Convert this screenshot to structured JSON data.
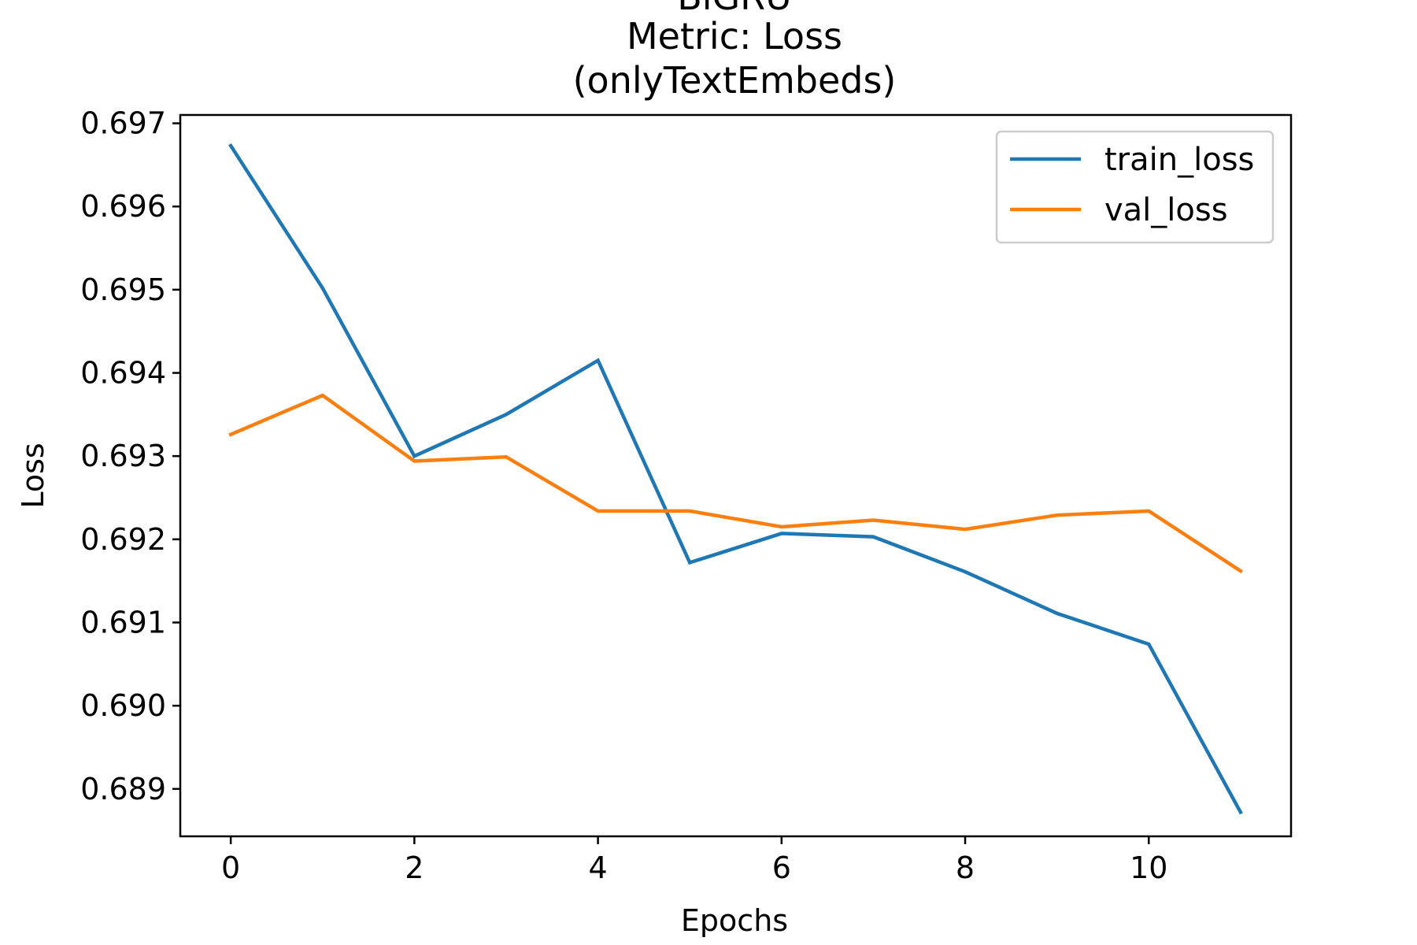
{
  "chart_data": {
    "type": "line",
    "title_lines": [
      "BiGRU",
      "Metric: Loss",
      "(onlyTextEmbeds)"
    ],
    "xlabel": "Epochs",
    "ylabel": "Loss",
    "x": [
      0,
      1,
      2,
      3,
      4,
      5,
      6,
      7,
      8,
      9,
      10,
      11
    ],
    "xticks": [
      0,
      2,
      4,
      6,
      8,
      10
    ],
    "yticks": [
      0.689,
      0.69,
      0.691,
      0.692,
      0.693,
      0.694,
      0.695,
      0.696,
      0.697
    ],
    "ytick_labels": [
      "0.689",
      "0.690",
      "0.691",
      "0.692",
      "0.693",
      "0.694",
      "0.695",
      "0.696",
      "0.697"
    ],
    "xlim": [
      -0.55,
      11.55
    ],
    "ylim": [
      0.68843,
      0.6971
    ],
    "grid": false,
    "legend_position": "top-right",
    "series": [
      {
        "name": "train_loss",
        "color": "#1f77b4",
        "values": [
          0.69673,
          0.69502,
          0.693,
          0.6935,
          0.69415,
          0.69172,
          0.69207,
          0.69203,
          0.69161,
          0.69111,
          0.69074,
          0.68872
        ]
      },
      {
        "name": "val_loss",
        "color": "#ff7f0e",
        "values": [
          0.69326,
          0.69373,
          0.69294,
          0.69299,
          0.69234,
          0.69234,
          0.69215,
          0.69223,
          0.69212,
          0.69229,
          0.69234,
          0.69162
        ]
      }
    ]
  }
}
